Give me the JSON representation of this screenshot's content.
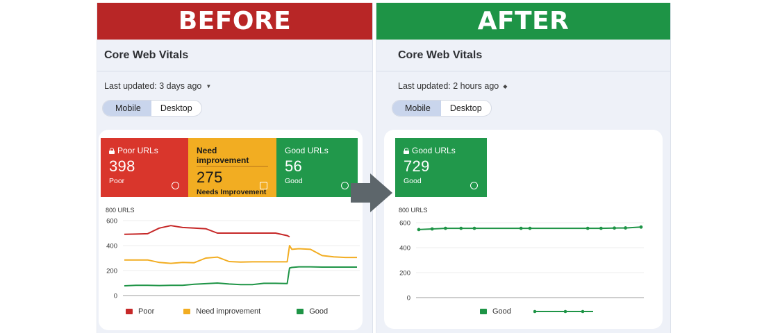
{
  "before": {
    "banner": "BEFORE",
    "banner_color": "#b82626",
    "title": "Core Web Vitals",
    "last_updated": "Last updated: 3 days ago",
    "tabs": [
      {
        "label": "Mobile",
        "active": true
      },
      {
        "label": "Desktop",
        "active": false
      }
    ],
    "tiles": [
      {
        "label": "Poor URLs",
        "value": "398",
        "sub": "Poor",
        "color": "#d9362c"
      },
      {
        "label": "Need improvement",
        "value": "275",
        "sub": "Needs Improvement",
        "color": "#f2ad22"
      },
      {
        "label": "Good URLs",
        "value": "56",
        "sub": "Good",
        "color": "#21984b"
      }
    ],
    "chart_unit": "800 URLS",
    "legend": [
      "Poor",
      "Need improvement",
      "Good"
    ]
  },
  "after": {
    "banner": "AFTER",
    "banner_color": "#1e9446",
    "title": "Core Web Vitals",
    "last_updated": "Last updated: 2 hours ago",
    "tabs": [
      {
        "label": "Mobile",
        "active": true
      },
      {
        "label": "Desktop",
        "active": false
      }
    ],
    "tiles": [
      {
        "label": "Good URLs",
        "value": "729",
        "sub": "Good",
        "color": "#21984b"
      }
    ],
    "chart_unit": "800 URLS",
    "legend": [
      "Good"
    ]
  },
  "chart_data": [
    {
      "type": "line",
      "title": "Core Web Vitals (Before)",
      "ylabel": "800 URLS",
      "ylim": [
        0,
        600
      ],
      "yticks": [
        0,
        200,
        400,
        600
      ],
      "grid": true,
      "legend_position": "bottom",
      "x": [
        0,
        5,
        10,
        15,
        20,
        25,
        30,
        35,
        40,
        45,
        50,
        55,
        60,
        65,
        70,
        71,
        72,
        75,
        80,
        85,
        90,
        95,
        100
      ],
      "series": [
        {
          "name": "Poor",
          "color": "#c62828",
          "values": [
            490,
            492,
            495,
            540,
            560,
            545,
            540,
            535,
            500,
            500,
            500,
            500,
            500,
            500,
            480,
            470,
            null,
            null,
            null,
            null,
            null,
            null,
            null
          ]
        },
        {
          "name": "Need improvement",
          "color": "#f2ad22",
          "values": [
            285,
            285,
            285,
            265,
            258,
            265,
            263,
            300,
            308,
            272,
            268,
            270,
            270,
            270,
            270,
            400,
            370,
            375,
            370,
            320,
            310,
            305,
            305
          ]
        },
        {
          "name": "Good",
          "color": "#1e9446",
          "values": [
            78,
            82,
            82,
            80,
            82,
            82,
            90,
            95,
            100,
            92,
            88,
            88,
            98,
            98,
            96,
            220,
            225,
            230,
            230,
            228,
            228,
            228,
            228
          ]
        }
      ]
    },
    {
      "type": "line",
      "title": "Core Web Vitals (After)",
      "ylabel": "800 URLS",
      "ylim": [
        0,
        600
      ],
      "yticks": [
        0,
        200,
        400,
        600
      ],
      "grid": true,
      "legend_position": "bottom",
      "x": [
        0,
        6,
        12,
        19,
        25,
        46,
        50,
        76,
        82,
        88,
        93,
        100
      ],
      "series": [
        {
          "name": "Good",
          "color": "#1e9446",
          "values": [
            545,
            550,
            555,
            555,
            555,
            555,
            555,
            555,
            555,
            557,
            558,
            565
          ]
        }
      ]
    }
  ]
}
